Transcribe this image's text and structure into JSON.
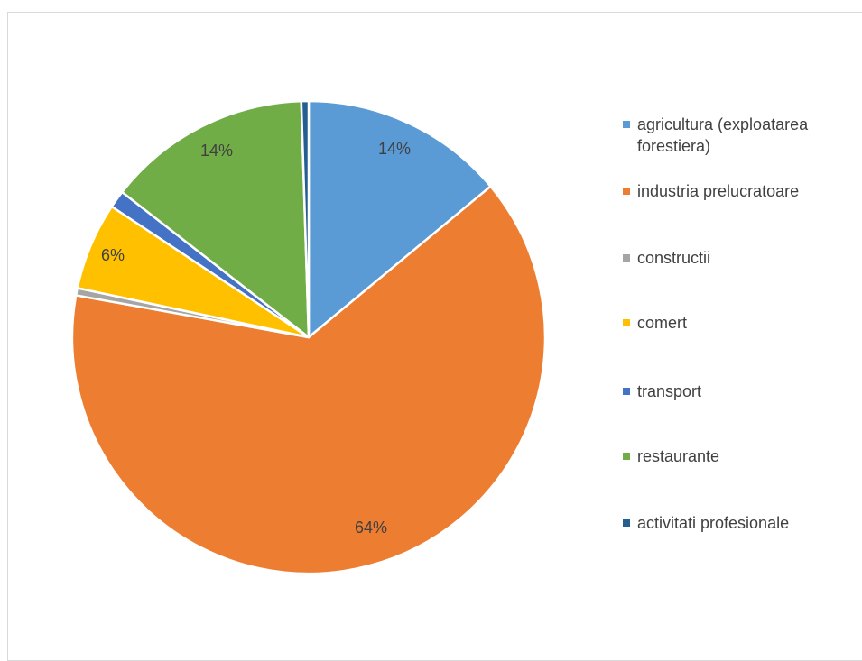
{
  "chart_data": {
    "type": "pie",
    "title": "",
    "slices": [
      {
        "label": "agricultura (exploatarea forestiera)",
        "value": 14,
        "data_label": "14%",
        "color": "#5b9bd5"
      },
      {
        "label": "industria prelucratoare",
        "value": 64,
        "data_label": "64%",
        "color": "#ed7d31"
      },
      {
        "label": "constructii",
        "value": 0.5,
        "data_label": "",
        "color": "#a5a5a5"
      },
      {
        "label": "comert",
        "value": 6,
        "data_label": "6%",
        "color": "#ffc000"
      },
      {
        "label": "transport",
        "value": 1.2,
        "data_label": "",
        "color": "#4472c4"
      },
      {
        "label": "restaurante",
        "value": 14,
        "data_label": "14%",
        "color": "#70ad47"
      },
      {
        "label": "activitati profesionale",
        "value": 0.5,
        "data_label": "",
        "color": "#255e91"
      }
    ],
    "legend_position": "right"
  }
}
